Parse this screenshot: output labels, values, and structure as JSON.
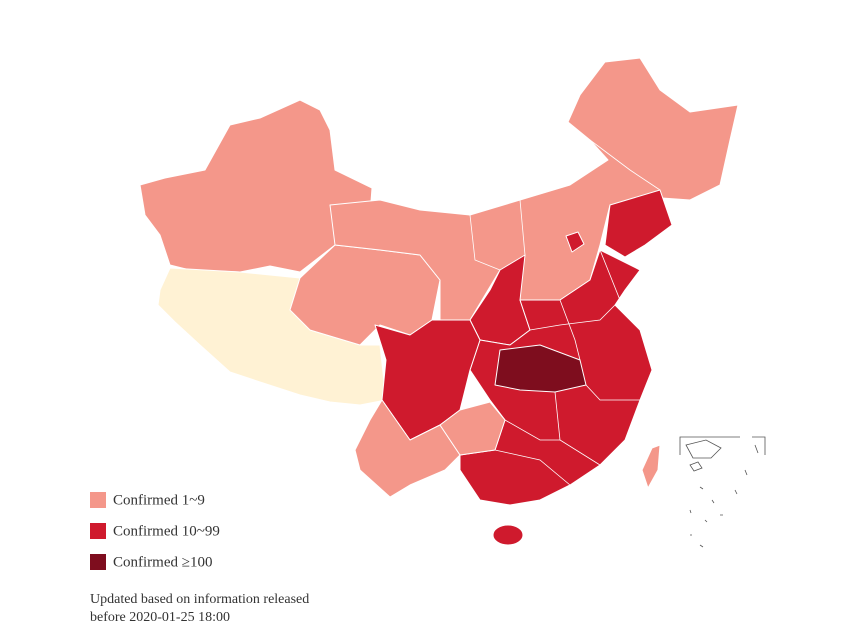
{
  "legend": [
    {
      "label": "Confirmed 1~9",
      "color": "#f4978a"
    },
    {
      "label": "Confirmed 10~99",
      "color": "#cf1a2d"
    },
    {
      "label": "Confirmed ≥100",
      "color": "#7e0d1e"
    }
  ],
  "no_data_color": "#fff2d4",
  "note": [
    "Updated based on information released",
    "before 2020-01-25 18:00"
  ]
}
